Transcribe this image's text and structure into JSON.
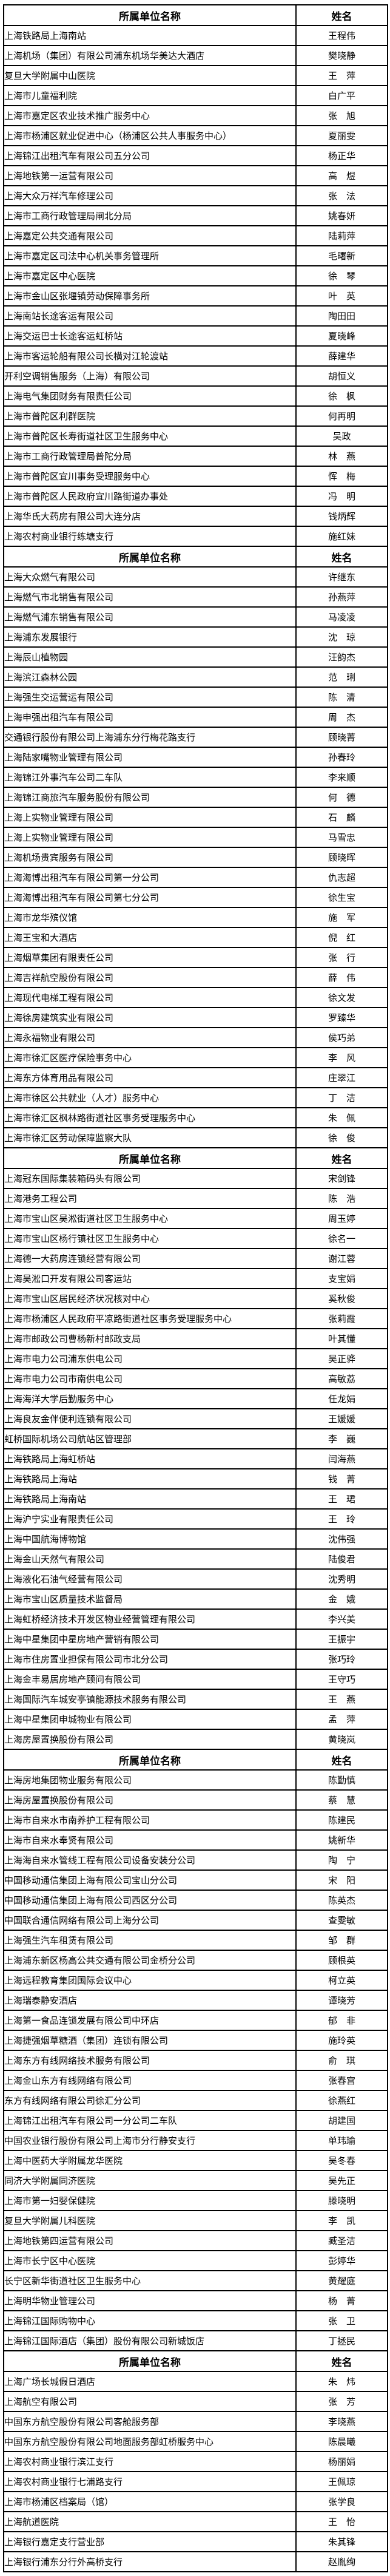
{
  "table": {
    "columns": [
      "所属单位名称",
      "姓名"
    ],
    "sections": [
      {
        "rows": [
          {
            "unit": "上海铁路局上海南站",
            "name": "王程伟"
          },
          {
            "unit": "上海机场（集团）有限公司浦东机场华美达大酒店",
            "name": "樊晓静"
          },
          {
            "unit": "复旦大学附属中山医院",
            "name": "王　萍"
          },
          {
            "unit": "上海市儿童福利院",
            "name": "白广平"
          },
          {
            "unit": "上海市嘉定区农业技术推广服务中心",
            "name": "张　旭"
          },
          {
            "unit": "上海市杨浦区就业促进中心（杨浦区公共人事服务中心）",
            "name": "夏丽雯"
          },
          {
            "unit": "上海锦江出租汽车有限公司五分公司",
            "name": "杨正华"
          },
          {
            "unit": "上海地铁第一运营有限公司",
            "name": "高　煜"
          },
          {
            "unit": "上海大众万祥汽车修理公司",
            "name": "张　法"
          },
          {
            "unit": "上海市工商行政管理局闸北分局",
            "name": "姚春妍"
          },
          {
            "unit": "上海嘉定公共交通有限公司",
            "name": "陆莉萍"
          },
          {
            "unit": "上海市嘉定区司法中心机关事务管理所",
            "name": "毛曙新"
          },
          {
            "unit": "上海市嘉定区中心医院",
            "name": "徐　琴"
          },
          {
            "unit": "上海市金山区张堰镇劳动保障事务所",
            "name": "叶　英"
          },
          {
            "unit": "上海南站长途客运有限公司",
            "name": "陶田田"
          },
          {
            "unit": "上海交运巴士长途客运虹桥站",
            "name": "夏晓峰"
          },
          {
            "unit": "上海市客运轮船有限公司长横对江轮渡站",
            "name": "薛建华"
          },
          {
            "unit": "开利空调销售服务（上海）有限公司",
            "name": "胡恒义"
          },
          {
            "unit": "上海电气集团财务有限责任公司",
            "name": "徐　枫"
          },
          {
            "unit": "上海市普陀区利群医院",
            "name": "何再明"
          },
          {
            "unit": "上海市普陀区长寿街道社区卫生服务中心",
            "name": "吴政"
          },
          {
            "unit": "上海市工商行政管理局普陀分局",
            "name": "林　燕"
          },
          {
            "unit": "上海市普陀区宜川事务受理服务中心",
            "name": "恽　梅"
          },
          {
            "unit": "上海市普陀区人民政府宜川路街道办事处",
            "name": "冯　明"
          },
          {
            "unit": "上海华氏大药房有限公司大连分店",
            "name": "钱炳辉"
          },
          {
            "unit": "上海农村商业银行练塘支行",
            "name": "施红妹"
          }
        ]
      },
      {
        "rows": [
          {
            "unit": "上海大众燃气有限公司",
            "name": "许继东"
          },
          {
            "unit": "上海燃气市北销售有限公司",
            "name": "孙燕萍"
          },
          {
            "unit": "上海燃气浦东销售有限公司",
            "name": "马凌凌"
          },
          {
            "unit": "上海浦东发展银行",
            "name": "沈　琼"
          },
          {
            "unit": "上海辰山植物园",
            "name": "汪韵杰"
          },
          {
            "unit": "上海滨江森林公园",
            "name": "范　琍"
          },
          {
            "unit": "上海强生交运营运有限公司",
            "name": "陈　清"
          },
          {
            "unit": "上海申强出租汽车有限公司",
            "name": "周　杰"
          },
          {
            "unit": "交通银行股份有限公司上海浦东分行梅花路支行",
            "name": "顾晓菁"
          },
          {
            "unit": "上海陆家嘴物业管理有限公司",
            "name": "孙春玲"
          },
          {
            "unit": "上海锦江外事汽车公司二车队",
            "name": "李来顺"
          },
          {
            "unit": "上海锦江商旅汽车服务股份有限公司",
            "name": "何　德"
          },
          {
            "unit": "上海上实物业管理有限公司",
            "name": "石　麟"
          },
          {
            "unit": "上海上实物业管理有限公司",
            "name": "马雪忠"
          },
          {
            "unit": "上海机场贵宾服务有限公司",
            "name": "顾晓晖"
          },
          {
            "unit": "上海海博出租汽车有限公司第一分公司",
            "name": "仇志超"
          },
          {
            "unit": "上海海博出租汽车有限公司第七分公司",
            "name": "徐生宝"
          },
          {
            "unit": "上海市龙华殡仪馆",
            "name": "施　军"
          },
          {
            "unit": "上海王宝和大酒店",
            "name": "倪　红"
          },
          {
            "unit": "上海烟草集团有限责任公司",
            "name": "张　行"
          },
          {
            "unit": "上海吉祥航空股份有限公司",
            "name": "薛　伟"
          },
          {
            "unit": "上海现代电梯工程有限公司",
            "name": "徐文发"
          },
          {
            "unit": "上海徐房建筑实业有限公司",
            "name": "罗臻华"
          },
          {
            "unit": "上海永福物业有限公司",
            "name": "侯巧弟"
          },
          {
            "unit": "上海市徐汇区医疗保险事务中心",
            "name": "李　风"
          },
          {
            "unit": "上海东方体育用品有限公司",
            "name": "庄翠江"
          },
          {
            "unit": "上海市徐区公共就业（人才）服务中心",
            "name": "丁　洁"
          },
          {
            "unit": "上海市徐汇区枫林路街道社区事务受理服务中心",
            "name": "朱　佩"
          },
          {
            "unit": "上海市徐汇区劳动保障监察大队",
            "name": "徐　俊"
          }
        ]
      },
      {
        "rows": [
          {
            "unit": "上海冠东国际集装箱码头有限公司",
            "name": "宋剑锋"
          },
          {
            "unit": "上海港务工程公司",
            "name": "陈　浩"
          },
          {
            "unit": "上海市宝山区吴淞街道社区卫生服务中心",
            "name": "周玉婷"
          },
          {
            "unit": "上海市宝山区杨行镇社区卫生服务中心",
            "name": "徐名一"
          },
          {
            "unit": "上海德一大药房连锁经营有限公司",
            "name": "谢江蓉"
          },
          {
            "unit": "上海吴淞口开发有限公司客运站",
            "name": "支宝娟"
          },
          {
            "unit": "上海市宝山区居民经济状况核对中心",
            "name": "奚秋俊"
          },
          {
            "unit": "上海市杨浦区人民政府平凉路街道社区事务受理服务中心",
            "name": "张莉霞"
          },
          {
            "unit": "上海市邮政公司曹杨新村邮政支局",
            "name": "叶其懂"
          },
          {
            "unit": "上海市电力公司浦东供电公司",
            "name": "吴正骅"
          },
          {
            "unit": "上海市电力公司市南供电公司",
            "name": "高敏荔"
          },
          {
            "unit": "上海海洋大学后勤服务中心",
            "name": "任龙娟"
          },
          {
            "unit": "上海良友金伴便利连锁有限公司",
            "name": "王媛媛"
          },
          {
            "unit": "虹桥国际机场公司航站区管理部",
            "name": "李　巍"
          },
          {
            "unit": "上海铁路局上海虹桥站",
            "name": "闫海燕"
          },
          {
            "unit": "上海铁路局上海站",
            "name": "钱　菁"
          },
          {
            "unit": "上海铁路局上海南站",
            "name": "王　珺"
          },
          {
            "unit": "上海沪宁实业有限责任公司",
            "name": "王　玲"
          },
          {
            "unit": "上海中国航海博物馆",
            "name": "沈伟强"
          },
          {
            "unit": "上海金山天然气有限公司",
            "name": "陆俊君"
          },
          {
            "unit": "上海液化石油气经营有限公司",
            "name": "沈秀明"
          },
          {
            "unit": "上海市宝山区质量技术监督局",
            "name": "金　娥"
          },
          {
            "unit": "上海虹桥经济技术开发区物业经营管理有限公司",
            "name": "李兴美"
          },
          {
            "unit": "上海中星集团中星房地产营销有限公司",
            "name": "王振宇"
          },
          {
            "unit": "上海市住房置业担保有限公司市北分公司",
            "name": "张巧玲"
          },
          {
            "unit": "上海金丰易居房地产顾问有限公司",
            "name": "王守巧"
          },
          {
            "unit": "上海国际汽车城安亭镇能源技术服务有限公司",
            "name": "王　燕"
          },
          {
            "unit": "上海中星集团申城物业有限公司",
            "name": "孟　萍"
          },
          {
            "unit": "上海房屋置换股份有限公司",
            "name": "黄晓岚"
          }
        ]
      },
      {
        "rows": [
          {
            "unit": "上海房地集团物业服务有限公司",
            "name": "陈勤慎"
          },
          {
            "unit": "上海房屋置换股份有限公司",
            "name": "蔡　慧"
          },
          {
            "unit": "上海市自来水市南养护工程有限公司",
            "name": "陈建民"
          },
          {
            "unit": "上海市自来水奉贤有限公司",
            "name": "姚新华"
          },
          {
            "unit": "上海海自来水管线工程有限公司设备安装分公司",
            "name": "陶　宁"
          },
          {
            "unit": "中国移动通信集团上海有限公司宝山分公司",
            "name": "宋　阳"
          },
          {
            "unit": "中国移动通信集团上海有限公司西区分公司",
            "name": "陈英杰"
          },
          {
            "unit": "中国联合通信网络有限公司上海分公司",
            "name": "查雯敏"
          },
          {
            "unit": "上海强生汽车租赁有限公司",
            "name": "邹　群"
          },
          {
            "unit": "上海浦东新区杨高公共交通有限公司金桥分公司",
            "name": "顾根英"
          },
          {
            "unit": "上海远程教育集团国际会议中心",
            "name": "柯立英"
          },
          {
            "unit": "上海瑞泰静安酒店",
            "name": "谭晓芳"
          },
          {
            "unit": "上海第一食品连锁发展有限公司中环店",
            "name": "郁　非"
          },
          {
            "unit": "上海捷强烟草糖酒（集团）连锁有限公司",
            "name": "施玲英"
          },
          {
            "unit": "上海东方有线网络技术服务有限公司",
            "name": "俞　琪"
          },
          {
            "unit": "上海金山东方有线网络有限公司",
            "name": "张春宫"
          },
          {
            "unit": "东方有线网络有限公司徐汇分公司",
            "name": "徐燕红"
          },
          {
            "unit": "上海锦江出租汽车有限公司一分公司二车队",
            "name": "胡建国"
          },
          {
            "unit": "中国农业银行股份有限公司上海市分行静安支行",
            "name": "单玮瑜"
          },
          {
            "unit": "上海中医药大学附属龙华医院",
            "name": "吴冬春"
          },
          {
            "unit": "同济大学附属同济医院",
            "name": "吴先正"
          },
          {
            "unit": "上海市第一妇婴保健院",
            "name": "滕晓明"
          },
          {
            "unit": "复旦大学附属儿科医院",
            "name": "李　凯"
          },
          {
            "unit": "上海地铁第四运营有限公司",
            "name": "臧圣洁"
          },
          {
            "unit": "上海市长宁区中心医院",
            "name": "彭婷华"
          },
          {
            "unit": "长宁区新华街道社区卫生服务中心",
            "name": "黄耀庭"
          },
          {
            "unit": "上海明华物业管理公司",
            "name": "杨　菁"
          },
          {
            "unit": "上海锦江国际购物中心",
            "name": "张　卫"
          },
          {
            "unit": "上海锦江国际酒店（集团）股份有限公司新城饭店",
            "name": "丁拯民"
          }
        ]
      },
      {
        "rows": [
          {
            "unit": "上海广场长城假日酒店",
            "name": "朱　炜"
          },
          {
            "unit": "上海航空有限公司",
            "name": "张　芳"
          },
          {
            "unit": "中国东方航空股份有限公司客舱服务部",
            "name": "李晓燕"
          },
          {
            "unit": "中国东方航空股份有限公司地面服务部虹桥服务中心",
            "name": "陈晨曦"
          },
          {
            "unit": "上海农村商业银行滨江支行",
            "name": "杨丽娟"
          },
          {
            "unit": "上海农村商业银行七浦路支行",
            "name": "王佩琼"
          },
          {
            "unit": "上海市杨浦区档案局（馆）",
            "name": "张学良"
          },
          {
            "unit": "上海航道医院",
            "name": "王　怡"
          },
          {
            "unit": "上海银行嘉定支行营业部",
            "name": "朱其锋"
          },
          {
            "unit": "上海银行浦东分行外高桥支行",
            "name": "赵胤绚"
          }
        ]
      }
    ]
  }
}
